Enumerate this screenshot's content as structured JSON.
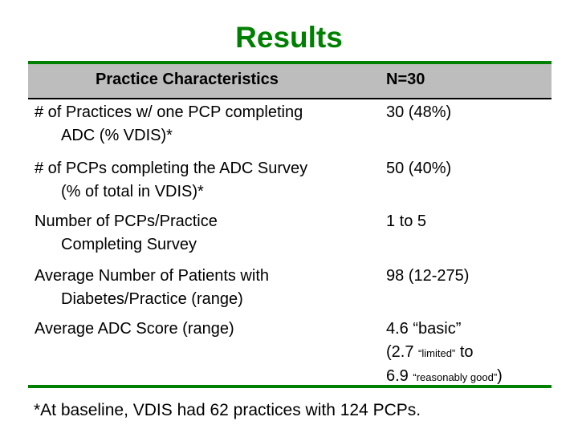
{
  "title": "Results",
  "table": {
    "header": {
      "col1": "Practice Characteristics",
      "col2": "N=30"
    },
    "rows": [
      {
        "label_line1": "# of Practices w/ one PCP completing",
        "label_line2": "ADC (% VDIS)*",
        "value": "30 (48%)"
      },
      {
        "label_line1": "# of PCPs completing the ADC Survey",
        "label_line2": "(% of total in VDIS)*",
        "value": "50 (40%)"
      },
      {
        "label_line1": "Number of PCPs/Practice",
        "label_line2": "Completing Survey",
        "value": "1 to 5"
      },
      {
        "label_line1": "Average Number of Patients with",
        "label_line2": "Diabetes/Practice (range)",
        "value": "98 (12-275)"
      },
      {
        "label_line1": "Average ADC Score (range)",
        "value_line1": "4.6 “basic”",
        "value_line2_a": "(2.7 ",
        "value_line2_small": "“limited”",
        "value_line2_b": " to",
        "value_line3_a": "6.9 ",
        "value_line3_small": "“reasonably good”",
        "value_line3_b": ")"
      }
    ]
  },
  "footnote": "*At baseline, VDIS had 62 practices with 124 PCPs."
}
